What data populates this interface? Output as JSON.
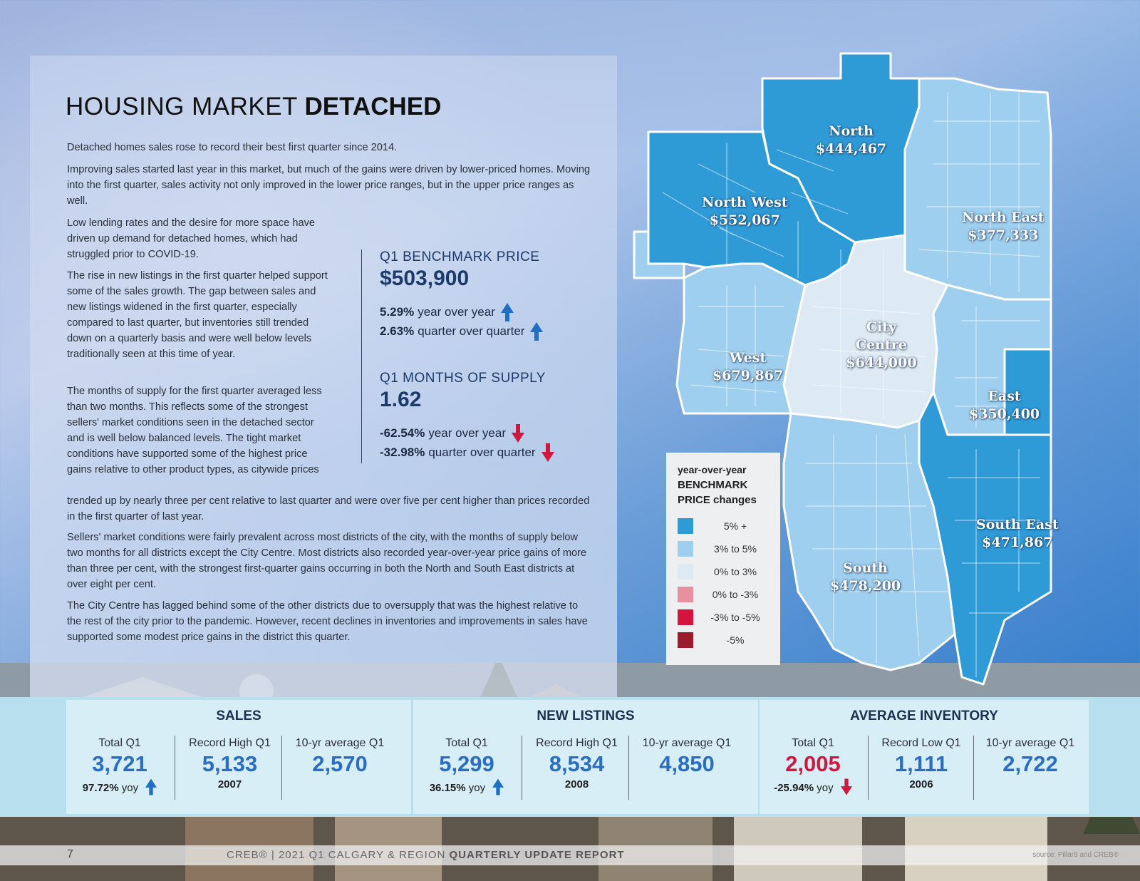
{
  "title": {
    "light": "HOUSING MARKET ",
    "bold": "DETACHED"
  },
  "paragraphs": {
    "p1": "Detached homes sales rose to record their best first quarter since 2014.",
    "p2": "Improving sales started last year in this market, but much of the gains were driven by lower-priced homes. Moving into the first quarter, sales activity not only improved in the lower price ranges, but in the upper price ranges as well.",
    "p3": "Low lending rates and the desire for more space have driven up demand for detached homes, which had struggled prior to COVID-19.",
    "p4": "The rise in new listings in the first quarter helped support some of the sales growth. The gap between sales and new listings widened in the first quarter, especially compared to last quarter, but inventories still trended down on a quarterly basis and were well below levels traditionally seen at this time of year.",
    "p5a": "The months of supply for the first quarter averaged less than two months. This reflects some of the strongest sellers' market conditions seen in the detached sector and is well below balanced levels. The tight market conditions have supported some of the highest price gains relative to other product types, as citywide prices",
    "p5b": "trended up by nearly three per cent relative to last quarter and were over five per cent higher than prices recorded in the first quarter of last year.",
    "p6": "Sellers' market conditions were fairly prevalent across most districts of the city, with the months of supply below two months for all districts except the City Centre. Most districts also recorded year-over-year price gains of more than three per cent, with the strongest first-quarter gains occurring in both the North and South East districts at over eight per cent.",
    "p7": "The City Centre has lagged behind some of the other districts due to oversupply that was the highest relative to the rest of the city prior to the pandemic. However, recent declines in inventories and improvements in sales have supported some modest price gains in the district this quarter."
  },
  "benchmark": {
    "label": "Q1 BENCHMARK PRICE",
    "value": "$503,900",
    "yoy_pct": "5.29%",
    "yoy_text": "year over year",
    "qoq_pct": "2.63%",
    "qoq_text": "quarter over quarter"
  },
  "supply": {
    "label": "Q1 MONTHS OF SUPPLY",
    "value": "1.62",
    "yoy_pct": "-62.54%",
    "yoy_text": "year over year",
    "qoq_pct": "-32.98%",
    "qoq_text": "quarter over quarter"
  },
  "districts": {
    "north": {
      "name": "North",
      "price": "$444,467"
    },
    "north_west": {
      "name": "North West",
      "price": "$552,067"
    },
    "north_east": {
      "name": "North East",
      "price": "$377,333"
    },
    "city_centre": {
      "name": "City Centre",
      "price": "$644,000"
    },
    "west": {
      "name": "West",
      "price": "$679,867"
    },
    "east": {
      "name": "East",
      "price": "$350,400"
    },
    "south_east": {
      "name": "South East",
      "price": "$471,867"
    },
    "south": {
      "name": "South",
      "price": "$478,200"
    }
  },
  "legend": {
    "title_1": "year-over-year",
    "title_2": "BENCHMARK",
    "title_3": "PRICE changes",
    "items": [
      {
        "label": "5% +",
        "color": "#2e9ad6"
      },
      {
        "label": "3% to 5%",
        "color": "#9fcfee"
      },
      {
        "label": "0% to 3%",
        "color": "#dde9f3"
      },
      {
        "label": "0% to -3%",
        "color": "#e8909f"
      },
      {
        "label": "-3% to -5%",
        "color": "#d4143f"
      },
      {
        "label": "-5%",
        "color": "#9b1a2c"
      }
    ]
  },
  "sales": {
    "title": "SALES",
    "c1_label": "Total Q1",
    "c1_value": "3,721",
    "c1_pct": "97.72%",
    "c1_yoy": "yoy",
    "c2_label": "Record High Q1",
    "c2_value": "5,133",
    "c2_year": "2007",
    "c3_label": "10-yr average Q1",
    "c3_value": "2,570"
  },
  "listings": {
    "title": "NEW LISTINGS",
    "c1_label": "Total Q1",
    "c1_value": "5,299",
    "c1_pct": "36.15%",
    "c1_yoy": "yoy",
    "c2_label": "Record High Q1",
    "c2_value": "8,534",
    "c2_year": "2008",
    "c3_label": "10-yr average Q1",
    "c3_value": "4,850"
  },
  "inventory": {
    "title": "AVERAGE INVENTORY",
    "c1_label": "Total Q1",
    "c1_value": "2,005",
    "c1_pct": "-25.94%",
    "c1_yoy": "yoy",
    "c2_label": "Record Low Q1",
    "c2_value": "1,111",
    "c2_year": "2006",
    "c3_label": "10-yr average Q1",
    "c3_value": "2,722"
  },
  "footer": {
    "page": "7",
    "report_light": "CREB® | 2021 Q1 CALGARY & REGION ",
    "report_bold": "QUARTERLY UPDATE REPORT",
    "source": "source: Pillar9 and CREB®"
  },
  "colors": {
    "up_arrow": "#1f6fc4",
    "down_arrow": "#d0173e"
  }
}
